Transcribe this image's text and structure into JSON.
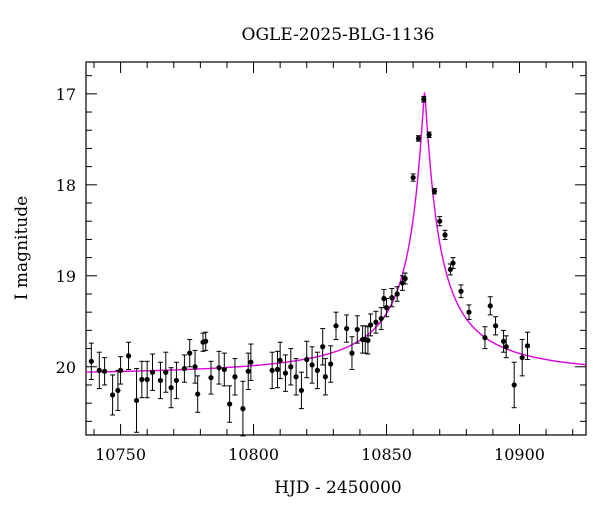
{
  "chart_data": {
    "type": "scatter",
    "title": "OGLE-2025-BLG-1136",
    "xlabel": "HJD - 2450000",
    "ylabel": "I magnitude",
    "xlim": [
      10737,
      10925
    ],
    "ylim": [
      20.75,
      16.65
    ],
    "y_inverted": true,
    "xticks": [
      10750,
      10800,
      10850,
      10900
    ],
    "yticks": [
      17,
      18,
      19,
      20
    ],
    "grid": false,
    "colors": {
      "points": "#000000",
      "model": "#e000e0",
      "frame": "#000000"
    },
    "series": [
      {
        "type": "errorbar",
        "points": [
          [
            10739,
            19.94,
            0.2
          ],
          [
            10742,
            20.04,
            0.2
          ],
          [
            10744,
            20.05,
            0.15
          ],
          [
            10747,
            20.31,
            0.22
          ],
          [
            10749,
            20.26,
            0.22
          ],
          [
            10750,
            20.04,
            0.15
          ],
          [
            10753,
            19.88,
            0.15
          ],
          [
            10756,
            20.37,
            0.35
          ],
          [
            10758,
            20.14,
            0.2
          ],
          [
            10760,
            20.14,
            0.2
          ],
          [
            10762,
            20.06,
            0.2
          ],
          [
            10765,
            20.15,
            0.2
          ],
          [
            10767,
            20.06,
            0.22
          ],
          [
            10769,
            20.23,
            0.22
          ],
          [
            10771,
            20.15,
            0.2
          ],
          [
            10774,
            20.02,
            0.15
          ],
          [
            10776,
            19.85,
            0.15
          ],
          [
            10778,
            20.0,
            0.18
          ],
          [
            10779,
            20.3,
            0.2
          ],
          [
            10781,
            19.73,
            0.1
          ],
          [
            10782,
            19.72,
            0.1
          ],
          [
            10784,
            20.12,
            0.18
          ],
          [
            10787,
            20.01,
            0.18
          ],
          [
            10789,
            20.03,
            0.18
          ],
          [
            10791,
            20.41,
            0.2
          ],
          [
            10793,
            20.11,
            0.2
          ],
          [
            10796,
            20.46,
            0.3
          ],
          [
            10798,
            20.05,
            0.2
          ],
          [
            10799,
            19.95,
            0.2
          ],
          [
            10807,
            20.04,
            0.2
          ],
          [
            10809,
            20.03,
            0.2
          ],
          [
            10810,
            19.93,
            0.2
          ],
          [
            10812,
            20.07,
            0.2
          ],
          [
            10814,
            20.0,
            0.2
          ],
          [
            10816,
            20.11,
            0.2
          ],
          [
            10818,
            20.26,
            0.2
          ],
          [
            10820,
            19.92,
            0.2
          ],
          [
            10822,
            19.98,
            0.2
          ],
          [
            10824,
            20.04,
            0.2
          ],
          [
            10826,
            19.78,
            0.2
          ],
          [
            10827,
            20.11,
            0.2
          ],
          [
            10829,
            19.97,
            0.2
          ],
          [
            10831,
            19.55,
            0.15
          ],
          [
            10835,
            19.58,
            0.15
          ],
          [
            10837,
            19.85,
            0.18
          ],
          [
            10839,
            19.59,
            0.15
          ],
          [
            10841,
            19.7,
            0.15
          ],
          [
            10842,
            19.7,
            0.15
          ],
          [
            10843,
            19.71,
            0.15
          ],
          [
            10844,
            19.54,
            0.12
          ],
          [
            10846,
            19.51,
            0.12
          ],
          [
            10848,
            19.47,
            0.12
          ],
          [
            10849,
            19.25,
            0.1
          ],
          [
            10850,
            19.35,
            0.1
          ],
          [
            10852,
            19.24,
            0.1
          ],
          [
            10854,
            19.2,
            0.08
          ],
          [
            10856,
            19.08,
            0.08
          ],
          [
            10857,
            19.03,
            0.06
          ],
          [
            10860,
            17.92,
            0.04
          ],
          [
            10862,
            17.49,
            0.03
          ],
          [
            10864,
            17.06,
            0.03
          ],
          [
            10866,
            17.45,
            0.03
          ],
          [
            10868,
            18.07,
            0.03
          ],
          [
            10870,
            18.4,
            0.05
          ],
          [
            10872,
            18.55,
            0.05
          ],
          [
            10874,
            18.93,
            0.06
          ],
          [
            10875,
            18.86,
            0.06
          ],
          [
            10878,
            19.17,
            0.07
          ],
          [
            10881,
            19.4,
            0.08
          ],
          [
            10887,
            19.68,
            0.12
          ],
          [
            10889,
            19.33,
            0.1
          ],
          [
            10891,
            19.55,
            0.1
          ],
          [
            10894,
            19.72,
            0.12
          ],
          [
            10895,
            19.78,
            0.12
          ],
          [
            10898,
            20.2,
            0.25
          ],
          [
            10901,
            19.9,
            0.2
          ],
          [
            10903,
            19.77,
            0.15
          ]
        ]
      },
      {
        "type": "model",
        "baseline_mag": 20.1,
        "peak_mag": 16.97,
        "t0": 10864.3,
        "tE": 26.5,
        "shape_w": 3.2,
        "shape_p": 1.15
      }
    ]
  }
}
